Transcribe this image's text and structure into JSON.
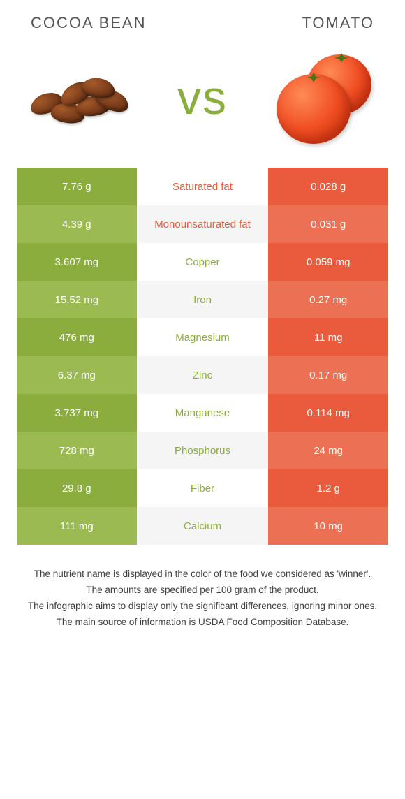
{
  "header": {
    "left_title": "Cocoa bean",
    "right_title": "Tomato",
    "vs_text": "vs",
    "vs_color": "#8aad3d"
  },
  "colors": {
    "left_bar": "#8aad3d",
    "left_bar_alt": "#9bbb52",
    "right_bar": "#e95b3c",
    "right_bar_alt": "#ec7154",
    "mid_bg": "#ffffff",
    "mid_bg_alt": "#f5f5f5",
    "nutrient_winner_left": "#8aad3d",
    "nutrient_winner_right": "#e95b3c"
  },
  "rows": [
    {
      "left": "7.76 g",
      "name": "Saturated fat",
      "right": "0.028 g",
      "winner": "right"
    },
    {
      "left": "4.39 g",
      "name": "Monounsaturated fat",
      "right": "0.031 g",
      "winner": "right"
    },
    {
      "left": "3.607 mg",
      "name": "Copper",
      "right": "0.059 mg",
      "winner": "left"
    },
    {
      "left": "15.52 mg",
      "name": "Iron",
      "right": "0.27 mg",
      "winner": "left"
    },
    {
      "left": "476 mg",
      "name": "Magnesium",
      "right": "11 mg",
      "winner": "left"
    },
    {
      "left": "6.37 mg",
      "name": "Zinc",
      "right": "0.17 mg",
      "winner": "left"
    },
    {
      "left": "3.737 mg",
      "name": "Manganese",
      "right": "0.114 mg",
      "winner": "left"
    },
    {
      "left": "728 mg",
      "name": "Phosphorus",
      "right": "24 mg",
      "winner": "left"
    },
    {
      "left": "29.8 g",
      "name": "Fiber",
      "right": "1.2 g",
      "winner": "left"
    },
    {
      "left": "111 mg",
      "name": "Calcium",
      "right": "10 mg",
      "winner": "left"
    }
  ],
  "footer": {
    "line1": "The nutrient name is displayed in the color of the food we considered as 'winner'.",
    "line2": "The amounts are specified per 100 gram of the product.",
    "line3": "The infographic aims to display only the significant differences, ignoring minor ones.",
    "line4": "The main source of information is USDA Food Composition Database."
  }
}
